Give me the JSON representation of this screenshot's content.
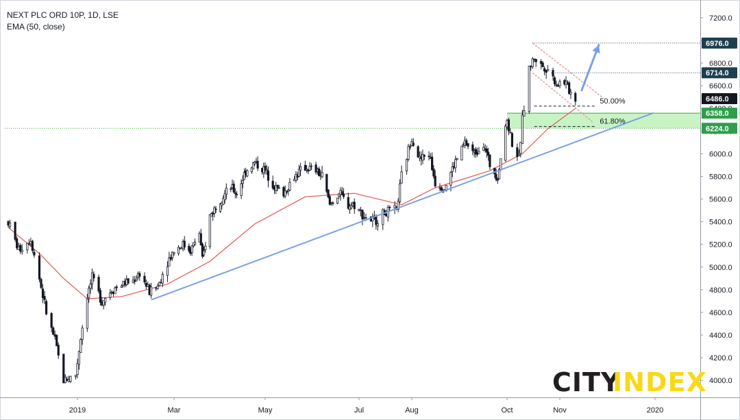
{
  "header": {
    "symbol_line": "NEXT PLC ORD 10P, 1D, LSE",
    "indicator_line": "EMA (50, close)"
  },
  "logo": {
    "part1": "CITY",
    "part2": "INDEX",
    "color1": "#231f20",
    "color2": "#f7d91a"
  },
  "colors": {
    "candle": "#131722",
    "ema": "#e0574f",
    "trendline": "#7b9fe8",
    "channel": "#e8a0a0",
    "zone_fill": "#b6f0b0",
    "zone_line": "#30b030",
    "badge_dark": "#1e3f4f",
    "badge_last": "#131722",
    "badge_green": "#2e9e4a"
  },
  "chart_data": {
    "type": "candlestick",
    "title": "NEXT PLC ORD 10P, 1D, LSE",
    "indicator": "EMA (50, close)",
    "x_labels": [
      "2019",
      "Mar",
      "May",
      "Jul",
      "Aug",
      "Oct",
      "Nov",
      "2020"
    ],
    "y_ticks": [
      4000,
      4200,
      4400,
      4600,
      4800,
      5000,
      5200,
      5400,
      5600,
      5800,
      6000,
      6200,
      6400,
      6600,
      6800,
      7000,
      7200
    ],
    "ylim": [
      3850,
      7320
    ],
    "anchors": [
      [
        "2018-11-22",
        5400
      ],
      [
        "2018-11-28",
        5150
      ],
      [
        "2018-12-05",
        5250
      ],
      [
        "2018-12-10",
        4900
      ],
      [
        "2018-12-14",
        4600
      ],
      [
        "2018-12-19",
        4350
      ],
      [
        "2018-12-24",
        4000
      ],
      [
        "2018-12-31",
        4050
      ],
      [
        "2019-01-03",
        4380
      ],
      [
        "2019-01-07",
        4750
      ],
      [
        "2019-01-10",
        4900
      ],
      [
        "2019-01-16",
        4700
      ],
      [
        "2019-01-22",
        4800
      ],
      [
        "2019-01-28",
        4850
      ],
      [
        "2019-02-04",
        4880
      ],
      [
        "2019-02-08",
        4950
      ],
      [
        "2019-02-14",
        4780
      ],
      [
        "2019-02-19",
        4830
      ],
      [
        "2019-02-25",
        5050
      ],
      [
        "2019-03-01",
        5150
      ],
      [
        "2019-03-07",
        5200
      ],
      [
        "2019-03-12",
        5150
      ],
      [
        "2019-03-18",
        5300
      ],
      [
        "2019-03-20",
        5050
      ],
      [
        "2019-03-25",
        5450
      ],
      [
        "2019-04-01",
        5600
      ],
      [
        "2019-04-08",
        5700
      ],
      [
        "2019-04-12",
        5650
      ],
      [
        "2019-04-18",
        5850
      ],
      [
        "2019-04-24",
        5920
      ],
      [
        "2019-05-01",
        5850
      ],
      [
        "2019-05-08",
        5700
      ],
      [
        "2019-05-13",
        5650
      ],
      [
        "2019-05-20",
        5800
      ],
      [
        "2019-05-27",
        5880
      ],
      [
        "2019-06-03",
        5850
      ],
      [
        "2019-06-07",
        5800
      ],
      [
        "2019-06-12",
        5550
      ],
      [
        "2019-06-18",
        5650
      ],
      [
        "2019-06-24",
        5550
      ],
      [
        "2019-06-28",
        5550
      ],
      [
        "2019-07-04",
        5450
      ],
      [
        "2019-07-10",
        5400
      ],
      [
        "2019-07-16",
        5480
      ],
      [
        "2019-07-23",
        5500
      ],
      [
        "2019-07-26",
        5800
      ],
      [
        "2019-08-01",
        6150
      ],
      [
        "2019-08-06",
        5950
      ],
      [
        "2019-08-12",
        6000
      ],
      [
        "2019-08-16",
        5750
      ],
      [
        "2019-08-22",
        5700
      ],
      [
        "2019-08-28",
        5900
      ],
      [
        "2019-09-04",
        6100
      ],
      [
        "2019-09-10",
        6000
      ],
      [
        "2019-09-16",
        6100
      ],
      [
        "2019-09-20",
        5900
      ],
      [
        "2019-09-25",
        5800
      ],
      [
        "2019-10-01",
        6300
      ],
      [
        "2019-10-04",
        6100
      ],
      [
        "2019-10-08",
        5950
      ],
      [
        "2019-10-10",
        6300
      ],
      [
        "2019-10-14",
        6750
      ],
      [
        "2019-10-17",
        6850
      ],
      [
        "2019-10-21",
        6780
      ],
      [
        "2019-10-25",
        6750
      ],
      [
        "2019-10-30",
        6620
      ],
      [
        "2019-11-04",
        6640
      ],
      [
        "2019-11-07",
        6560
      ],
      [
        "2019-11-11",
        6486
      ]
    ],
    "ema_anchors": [
      [
        "2018-11-22",
        5350
      ],
      [
        "2018-12-10",
        5120
      ],
      [
        "2018-12-24",
        4900
      ],
      [
        "2019-01-07",
        4720
      ],
      [
        "2019-01-28",
        4740
      ],
      [
        "2019-02-25",
        4850
      ],
      [
        "2019-03-25",
        5050
      ],
      [
        "2019-04-24",
        5380
      ],
      [
        "2019-05-27",
        5620
      ],
      [
        "2019-06-28",
        5650
      ],
      [
        "2019-07-26",
        5550
      ],
      [
        "2019-08-16",
        5700
      ],
      [
        "2019-09-20",
        5850
      ],
      [
        "2019-10-10",
        6000
      ],
      [
        "2019-10-25",
        6220
      ],
      [
        "2019-11-11",
        6400
      ]
    ],
    "trendline": [
      [
        "2019-02-15",
        4710
      ],
      [
        "2019-12-31",
        6360
      ]
    ],
    "channel_upper": [
      [
        "2019-10-16",
        6976
      ],
      [
        "2019-11-28",
        6500
      ]
    ],
    "channel_lower": [
      [
        "2019-10-16",
        6714
      ],
      [
        "2019-11-22",
        6280
      ]
    ],
    "projection_arrow": [
      [
        "2019-11-15",
        6560
      ],
      [
        "2019-11-26",
        6960
      ]
    ],
    "levels": [
      {
        "value": 6976.0,
        "label": "6976.0",
        "color": "#1e3f4f",
        "start": "2019-10-16"
      },
      {
        "value": 6714.0,
        "label": "6714.0",
        "color": "#1e3f4f",
        "start": "2019-10-27"
      }
    ],
    "support_zone": {
      "top": 6358.0,
      "bottom": 6224.0,
      "top_label": "6358.0",
      "bottom_label": "6224.0",
      "start": "2019-10-01"
    },
    "fib_levels": [
      {
        "value": 6420,
        "label": "50.00%",
        "start": "2019-10-17",
        "end": "2019-11-24"
      },
      {
        "value": 6240,
        "label": "61.80%",
        "start": "2019-10-17",
        "end": "2019-11-24"
      }
    ],
    "last_price": {
      "value": 6486.0,
      "label": "6486.0"
    },
    "zone_line_full": {
      "value": 6224.0
    }
  }
}
